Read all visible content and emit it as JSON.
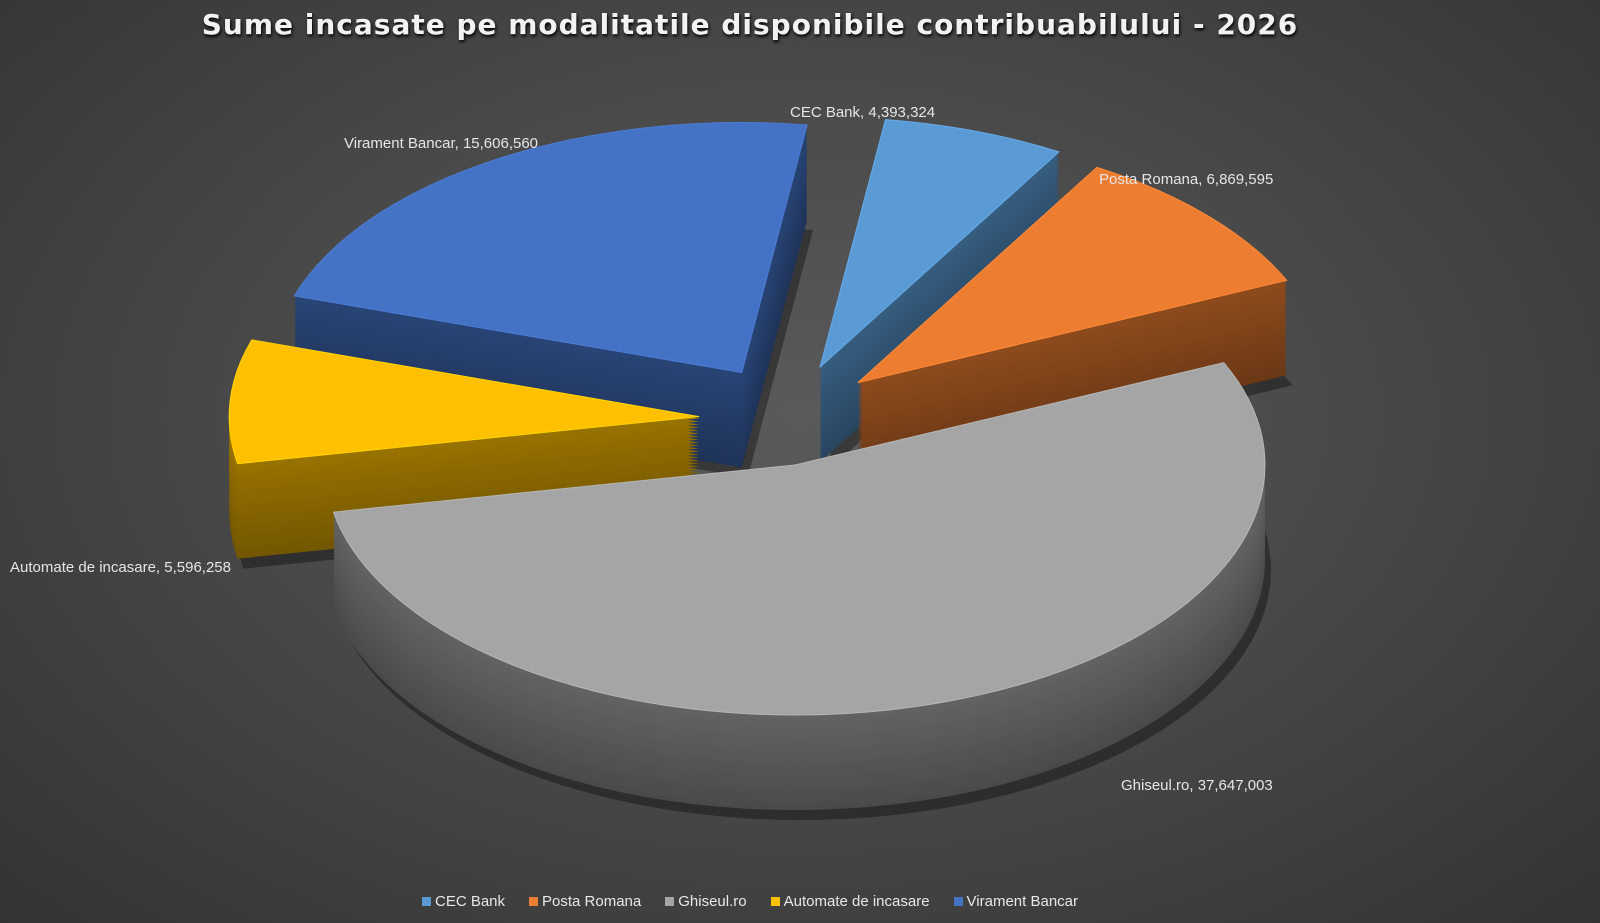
{
  "chart_data": {
    "type": "pie",
    "style": "3d-exploded",
    "title": "Sume incasate pe modalitatile disponibile contribuabilului - 2026",
    "categories": [
      "CEC Bank",
      "Posta Romana",
      "Ghiseul.ro",
      "Automate de incasare",
      "Virament Bancar"
    ],
    "values": [
      4393324,
      6869595,
      37647003,
      5596258,
      15606560
    ],
    "data_labels": [
      "CEC Bank, 4,393,324",
      "Posta Romana, 6,869,595",
      "Ghiseul.ro, 37,647,003",
      "Automate de incasare, 5,596,258",
      "Virament Bancar, 15,606,560"
    ],
    "colors": [
      "#5b9bd5",
      "#ed7d31",
      "#a5a5a5",
      "#ffc000",
      "#4472c4"
    ],
    "legend_position": "bottom"
  }
}
